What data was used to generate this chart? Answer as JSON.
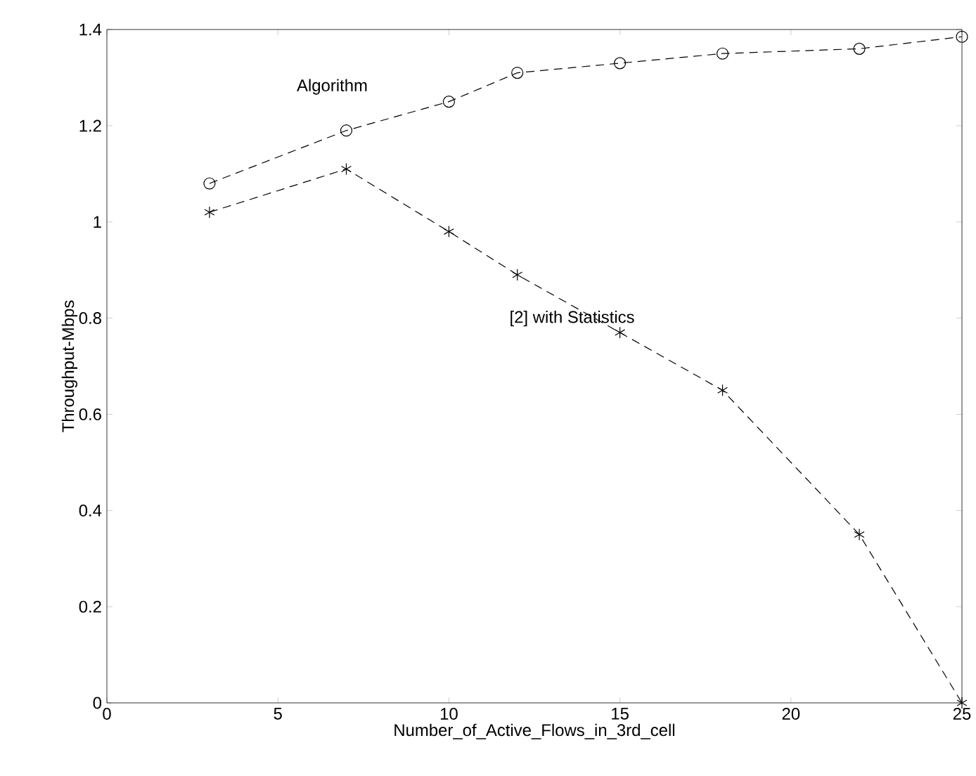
{
  "chart_data": {
    "type": "line",
    "xlabel": "Number_of_Active_Flows_in_3rd_cell",
    "ylabel": "Throughput-Mbps",
    "x": [
      3,
      7,
      10,
      12,
      15,
      18,
      22,
      25
    ],
    "series": [
      {
        "name": "Algorithm",
        "color": "#000000",
        "marker": "circle",
        "line_style": "dashed",
        "values": [
          1.08,
          1.19,
          1.25,
          1.31,
          1.33,
          1.35,
          1.36,
          1.385
        ]
      },
      {
        "name": "[2] with Statistics",
        "color": "#000000",
        "marker": "cross",
        "line_style": "dashed",
        "values": [
          1.02,
          1.11,
          0.98,
          0.89,
          0.77,
          0.65,
          0.35,
          0
        ]
      }
    ],
    "xlim": [
      0,
      25
    ],
    "ylim": [
      0,
      1.4
    ],
    "xticks": [
      0,
      5,
      10,
      15,
      20,
      25
    ],
    "yticks": [
      0,
      0.2,
      0.4,
      0.6,
      0.8,
      1,
      1.2,
      1.4
    ],
    "grid": false,
    "legend": false
  }
}
